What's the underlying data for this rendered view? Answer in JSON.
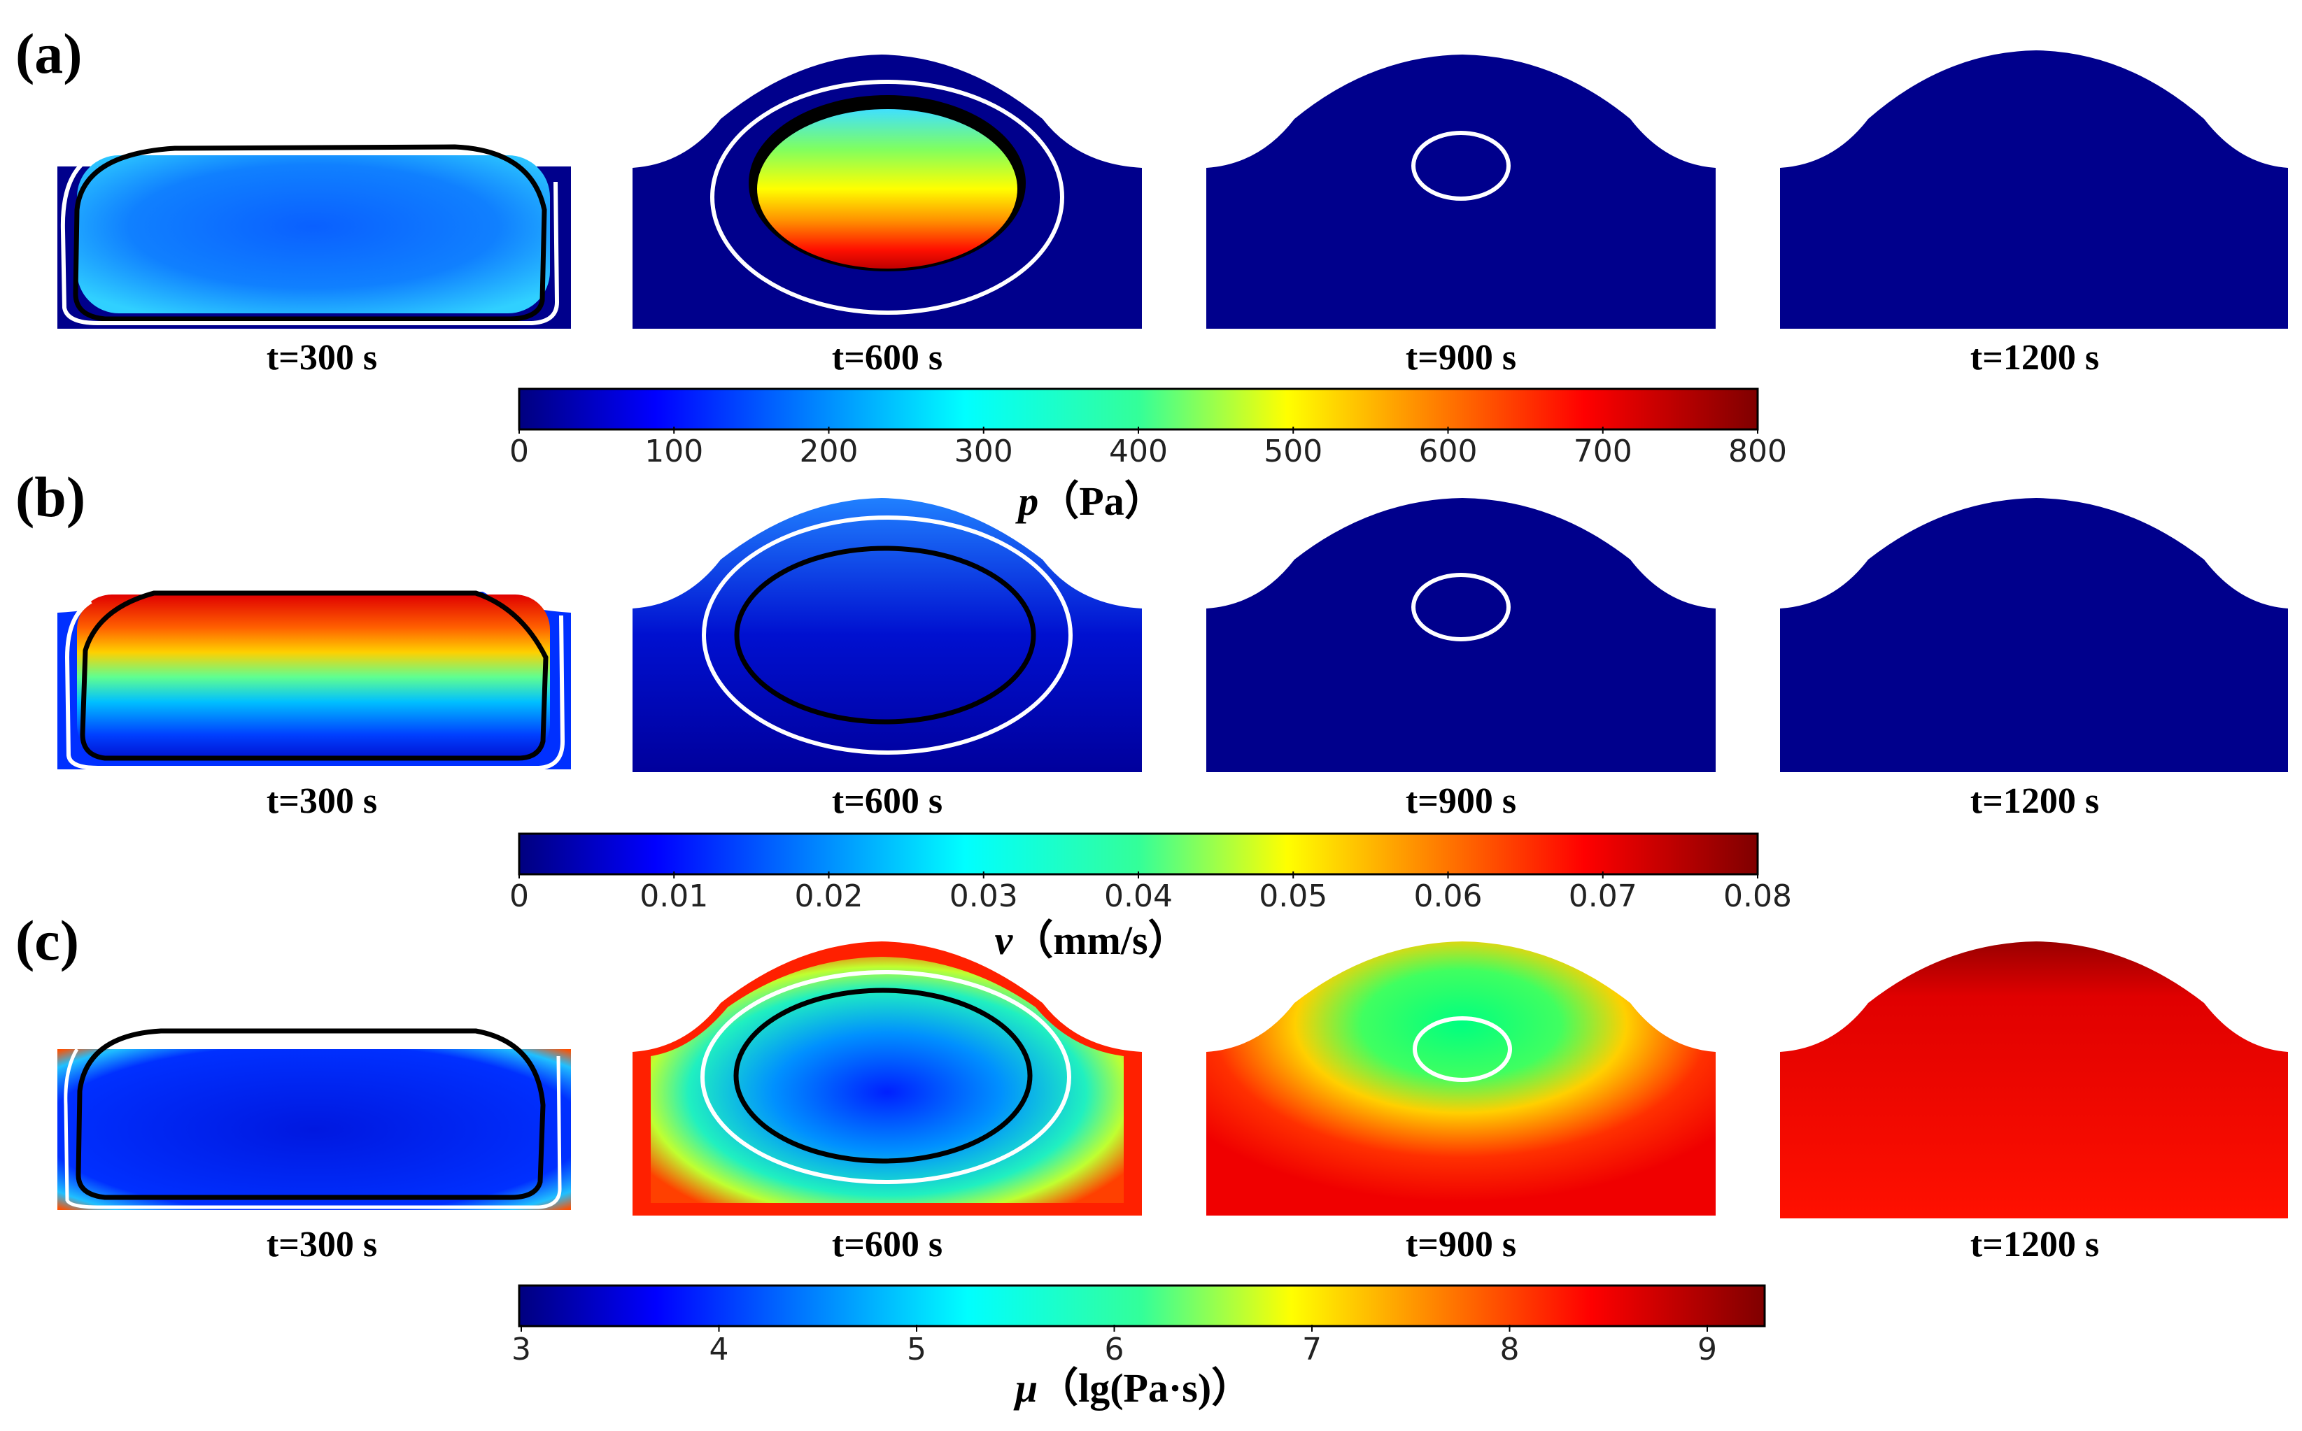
{
  "rows": [
    {
      "panel_label": "(a)",
      "times": [
        "t=300 s",
        "t=600 s",
        "t=900 s",
        "t=1200 s"
      ],
      "colorbar": {
        "symbol": "p",
        "unit": "（Pa）",
        "ticks": [
          "0",
          "100",
          "200",
          "300",
          "400",
          "500",
          "600",
          "700",
          "800"
        ]
      }
    },
    {
      "panel_label": "(b)",
      "times": [
        "t=300 s",
        "t=600 s",
        "t=900 s",
        "t=1200 s"
      ],
      "colorbar": {
        "symbol": "v",
        "unit": "（mm/s）",
        "ticks": [
          "0",
          "0.01",
          "0.02",
          "0.03",
          "0.04",
          "0.05",
          "0.06",
          "0.07",
          "0.08"
        ]
      }
    },
    {
      "panel_label": "(c)",
      "times": [
        "t=300 s",
        "t=600 s",
        "t=900 s",
        "t=1200 s"
      ],
      "colorbar": {
        "symbol": "μ",
        "unit": "（lg(Pa·s)）",
        "ticks": [
          "3",
          "4",
          "5",
          "6",
          "7",
          "8",
          "9"
        ]
      }
    }
  ],
  "colors": {
    "jet_stops": [
      "#00007f",
      "#0000ff",
      "#007fff",
      "#00ffff",
      "#7fff7f",
      "#ffff00",
      "#ff7f00",
      "#ff0000",
      "#7f0000"
    ],
    "background": "#00008c",
    "contour_outer": "#ffffff",
    "contour_inner": "#000000"
  }
}
